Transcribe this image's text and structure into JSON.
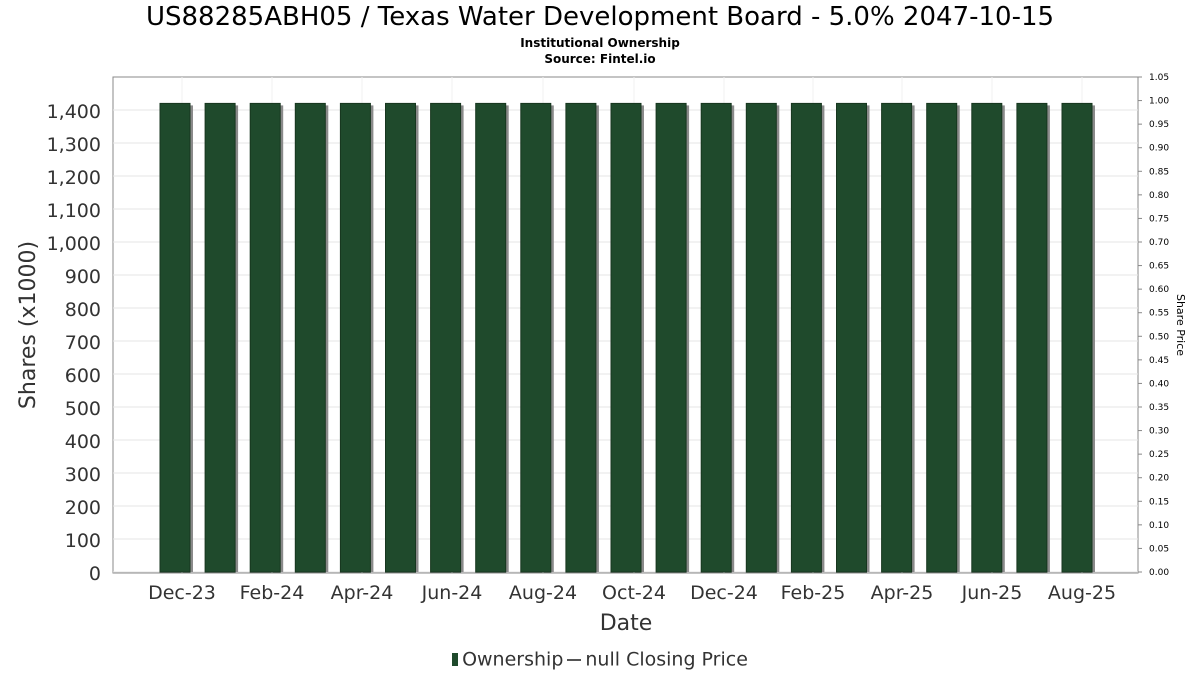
{
  "title": "US88285ABH05 / Texas Water Development Board - 5.0% 2047-10-15",
  "subtitle1": "Institutional Ownership",
  "subtitle2": "Source: Fintel.io",
  "legend": {
    "ownership": "Ownership",
    "price": "null Closing Price"
  },
  "colors": {
    "bar": "#1f4a2c",
    "bar_stripe": "#2e6b3f",
    "bar_shadow": "#8a8a8a",
    "grid": "#e6e6e6"
  },
  "chart_data": {
    "type": "bar",
    "xlabel": "Date",
    "ylabel": "Shares (x1000)",
    "y2label": "Share Price",
    "ylim": [
      0,
      1500
    ],
    "y2lim": [
      0,
      1.05
    ],
    "yticks": [
      "0",
      "100",
      "200",
      "300",
      "400",
      "500",
      "600",
      "700",
      "800",
      "900",
      "1,000",
      "1,100",
      "1,200",
      "1,300",
      "1,400"
    ],
    "y2ticks": [
      "0.00",
      "0.05",
      "0.10",
      "0.15",
      "0.20",
      "0.25",
      "0.30",
      "0.35",
      "0.40",
      "0.45",
      "0.50",
      "0.55",
      "0.60",
      "0.65",
      "0.70",
      "0.75",
      "0.80",
      "0.85",
      "0.90",
      "0.95",
      "1.00",
      "1.05"
    ],
    "xticks": [
      "Dec-23",
      "Feb-24",
      "Apr-24",
      "Jun-24",
      "Aug-24",
      "Oct-24",
      "Dec-24",
      "Feb-25",
      "Apr-25",
      "Jun-25",
      "Aug-25"
    ],
    "series": [
      {
        "name": "Ownership",
        "values": [
          1420,
          1420,
          1420,
          1420,
          1420,
          1420,
          1420,
          1420,
          1420,
          1420,
          1420,
          1420,
          1420,
          1420,
          1420,
          1420,
          1420,
          1420,
          1420,
          1420,
          1420
        ]
      }
    ],
    "grid": true
  }
}
